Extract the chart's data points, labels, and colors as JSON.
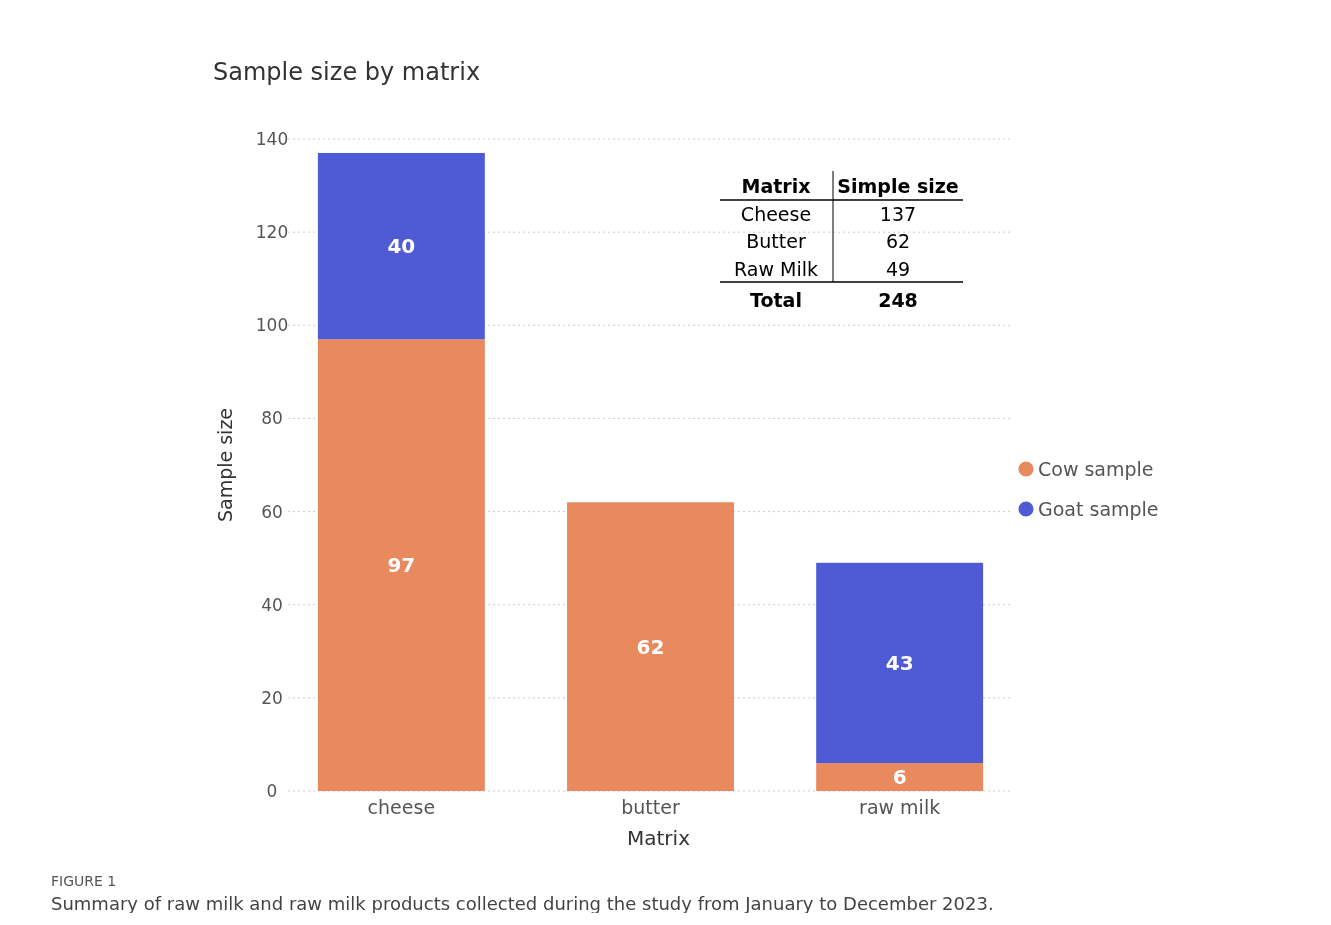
{
  "chart_data": {
    "type": "bar",
    "title": "Sample size by matrix",
    "xlabel": "Matrix",
    "ylabel": "Sample size",
    "categories": [
      "cheese",
      "butter",
      "raw milk"
    ],
    "series": [
      {
        "name": "Cow sample",
        "color": "#e8895e",
        "values": [
          97,
          62,
          6
        ]
      },
      {
        "name": "Goat sample",
        "color": "#4f5bd5",
        "values": [
          40,
          null,
          43
        ]
      }
    ],
    "stacked": true,
    "ylim": [
      0,
      140
    ],
    "yticks": [
      0,
      20,
      40,
      60,
      80,
      100,
      120,
      140
    ],
    "grid": "y",
    "legend": "right",
    "marker": "circle",
    "data_labels": true,
    "annotations": [
      "FIGURE 1",
      "Summary of raw milk and raw milk products collected during the study from January to December 2023.",
      "Matrix",
      "Simple size",
      "Cheese",
      "137",
      "Butter",
      "62",
      "Raw Milk",
      "49",
      "Total",
      "248"
    ]
  }
}
